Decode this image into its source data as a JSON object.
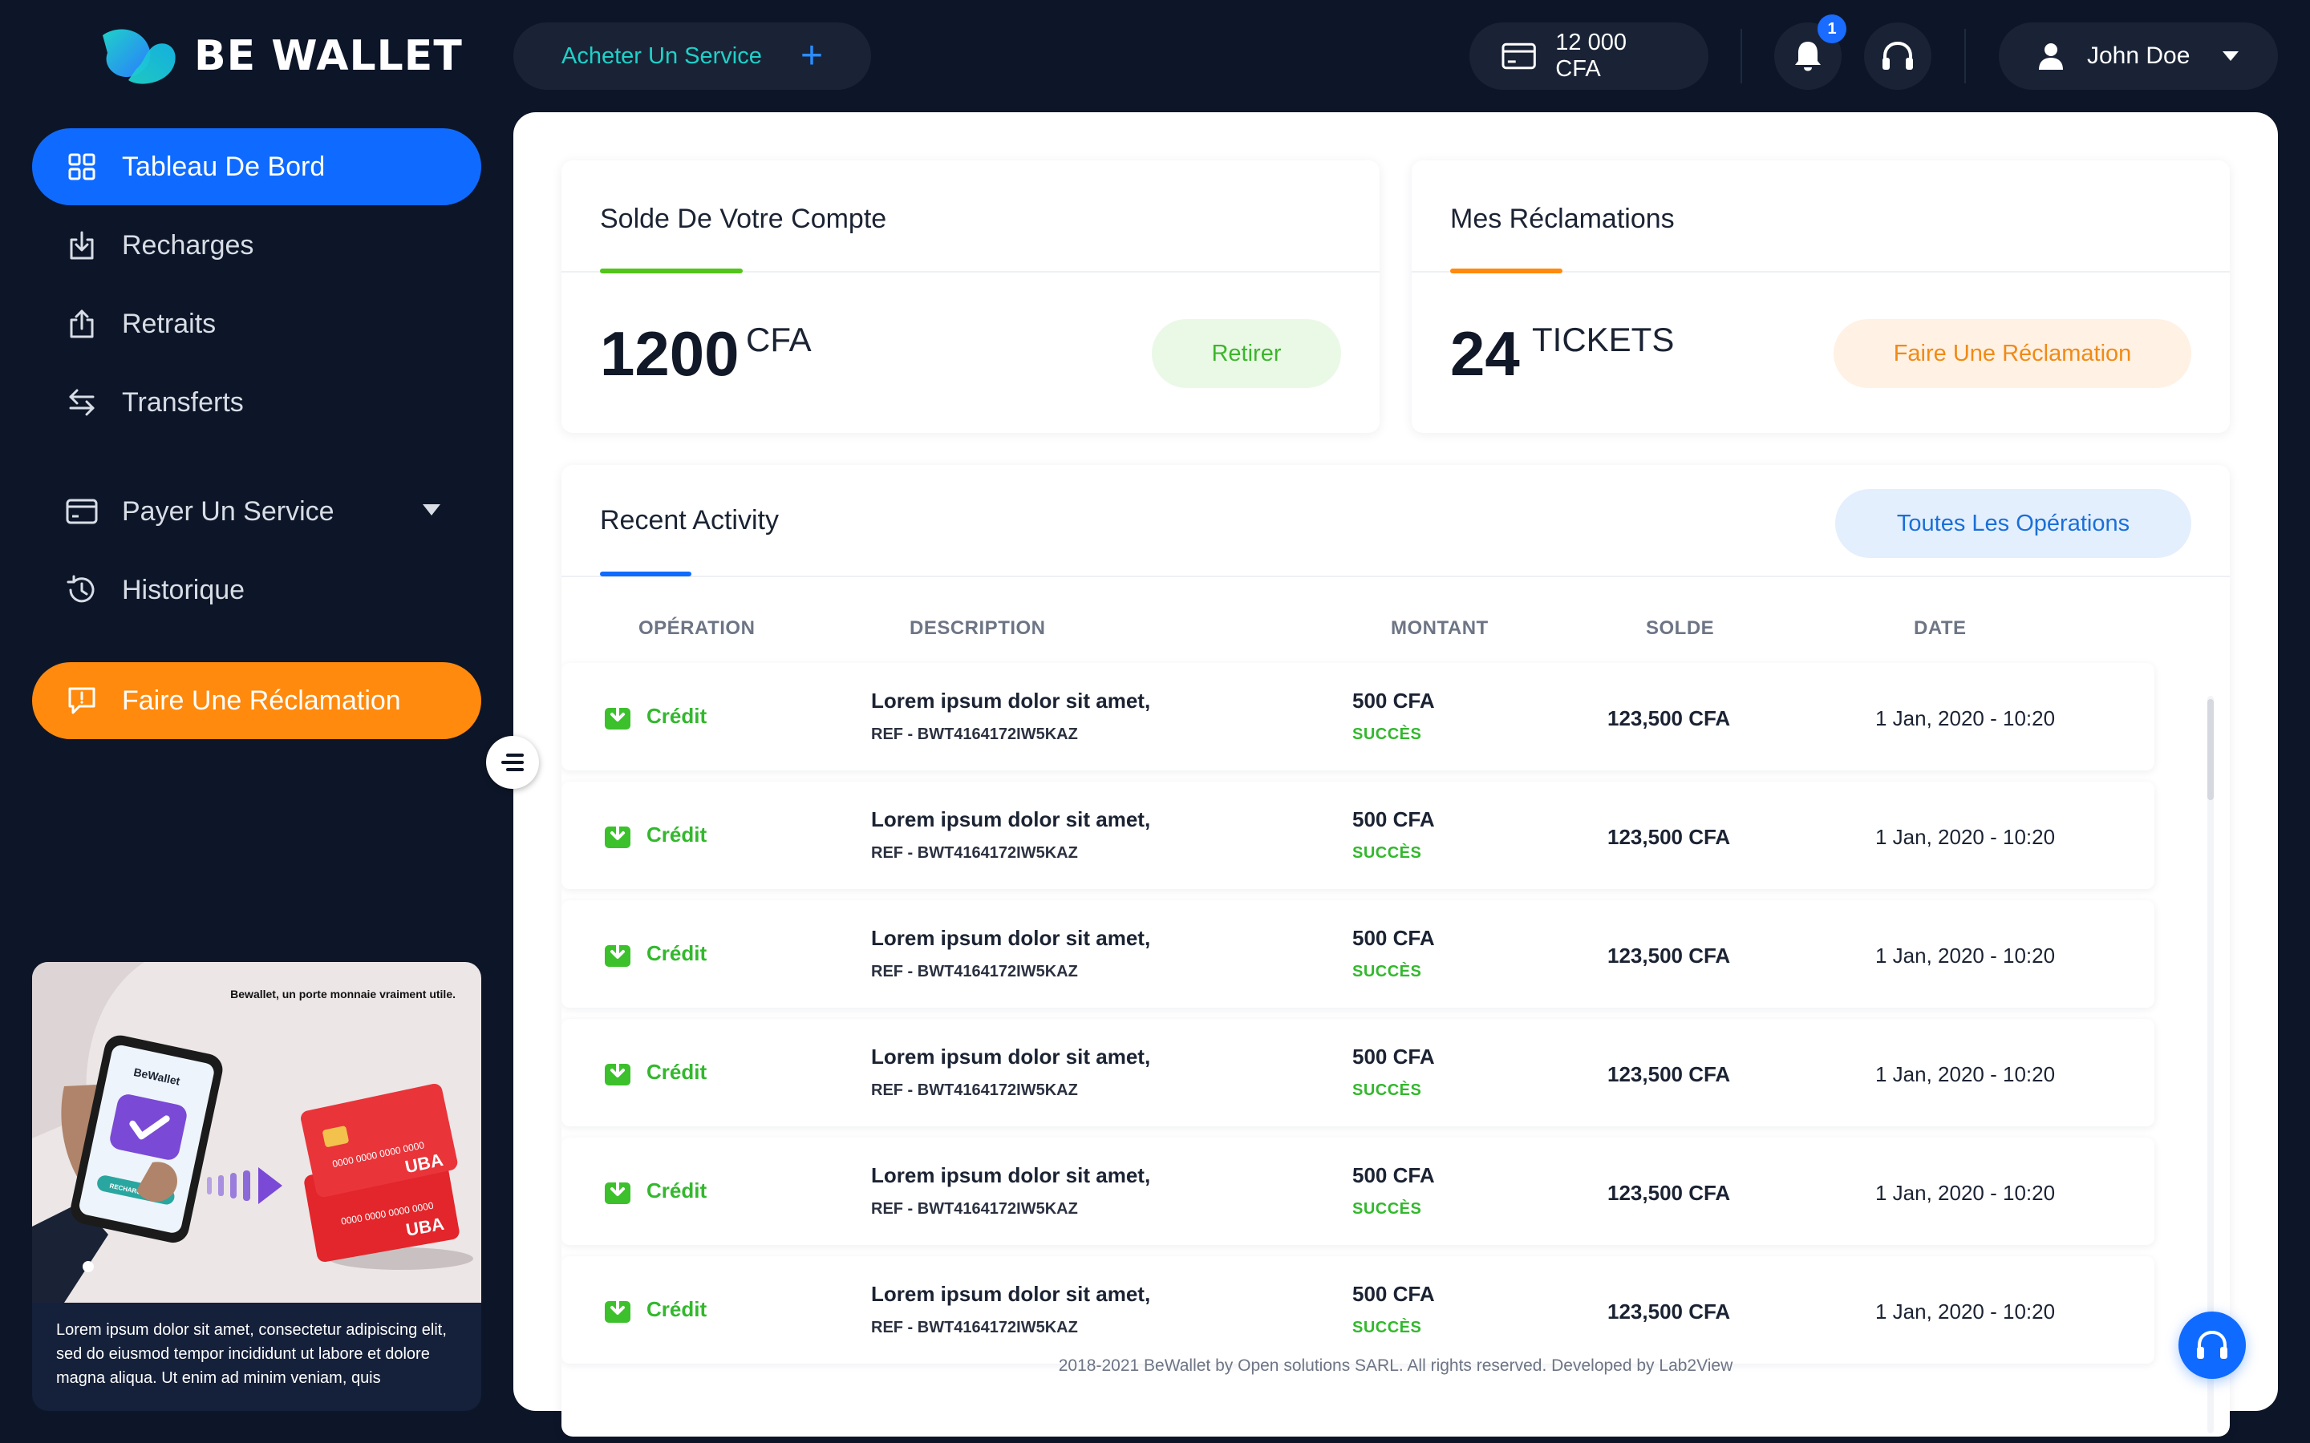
{
  "brand": {
    "name": "BE WALLET",
    "logo_icon": "bewallet-logo-icon"
  },
  "topbar": {
    "buy_service_label": "Acheter Un Service",
    "balance_label": "12 000 CFA",
    "notification_count": "1",
    "user_name": "John Doe",
    "icons": [
      "card-icon",
      "bell-icon",
      "headset-icon",
      "user-icon",
      "caret-down-icon"
    ]
  },
  "sidebar": {
    "items": [
      {
        "label": "Tableau De Bord",
        "icon": "grid-icon",
        "active": true
      },
      {
        "label": "Recharges",
        "icon": "download-icon"
      },
      {
        "label": "Retraits",
        "icon": "upload-icon"
      },
      {
        "label": "Transferts",
        "icon": "transfer-icon"
      },
      {
        "label": "Payer Un Service",
        "icon": "card-icon",
        "has_submenu": true
      },
      {
        "label": "Historique",
        "icon": "history-icon"
      }
    ],
    "claim_button_label": "Faire Une Réclamation",
    "promo": {
      "tagline": "Bewallet, un porte monnaie vraiment utile.",
      "text": "Lorem ipsum dolor sit amet, consectetur adipiscing elit, sed do eiusmod tempor incididunt ut labore et dolore magna aliqua. Ut enim ad minim veniam, quis",
      "art_labels": {
        "app_name": "BeWallet",
        "phone_button": "RECHARGER",
        "card_number": "0000 0000 0000 0000",
        "card_bank": "UBA"
      }
    }
  },
  "balance_card": {
    "title": "Solde De Votre Compte",
    "amount": "1200",
    "unit": "CFA",
    "action_label": "Retirer",
    "accent_color": "#52c41a"
  },
  "claims_card": {
    "title": "Mes Réclamations",
    "count": "24",
    "unit": "TICKETS",
    "action_label": "Faire Une Réclamation",
    "accent_color": "#ff8a0d"
  },
  "activity": {
    "title": "Recent Activity",
    "all_ops_label": "Toutes Les Opérations",
    "columns": [
      "OPÉRATION",
      "DESCRIPTION",
      "MONTANT",
      "SOLDE",
      "DATE"
    ],
    "rows": [
      {
        "type": "Crédit",
        "description": "Lorem ipsum dolor sit amet,",
        "ref": "REF - BWT4164172IW5KAZ",
        "amount": "500 CFA",
        "status": "SUCCÈS",
        "balance": "123,500 CFA",
        "date": "1 Jan, 2020 - 10:20"
      },
      {
        "type": "Crédit",
        "description": "Lorem ipsum dolor sit amet,",
        "ref": "REF - BWT4164172IW5KAZ",
        "amount": "500 CFA",
        "status": "SUCCÈS",
        "balance": "123,500 CFA",
        "date": "1 Jan, 2020 - 10:20"
      },
      {
        "type": "Crédit",
        "description": "Lorem ipsum dolor sit amet,",
        "ref": "REF - BWT4164172IW5KAZ",
        "amount": "500 CFA",
        "status": "SUCCÈS",
        "balance": "123,500 CFA",
        "date": "1 Jan, 2020 - 10:20"
      },
      {
        "type": "Crédit",
        "description": "Lorem ipsum dolor sit amet,",
        "ref": "REF - BWT4164172IW5KAZ",
        "amount": "500 CFA",
        "status": "SUCCÈS",
        "balance": "123,500 CFA",
        "date": "1 Jan, 2020 - 10:20"
      },
      {
        "type": "Crédit",
        "description": "Lorem ipsum dolor sit amet,",
        "ref": "REF - BWT4164172IW5KAZ",
        "amount": "500 CFA",
        "status": "SUCCÈS",
        "balance": "123,500 CFA",
        "date": "1 Jan, 2020 - 10:20"
      },
      {
        "type": "Crédit",
        "description": "Lorem ipsum dolor sit amet,",
        "ref": "REF - BWT4164172IW5KAZ",
        "amount": "500 CFA",
        "status": "SUCCÈS",
        "balance": "123,500 CFA",
        "date": "1 Jan, 2020 - 10:20"
      }
    ]
  },
  "footer": {
    "text": "2018-2021 BeWallet by Open solutions SARL. All rights reserved. Developed by Lab2View"
  },
  "colors": {
    "background": "#0d1628",
    "primary": "#0f6bff",
    "orange": "#ff8a0d",
    "success": "#33b82d",
    "teal": "#1fd1c8"
  }
}
